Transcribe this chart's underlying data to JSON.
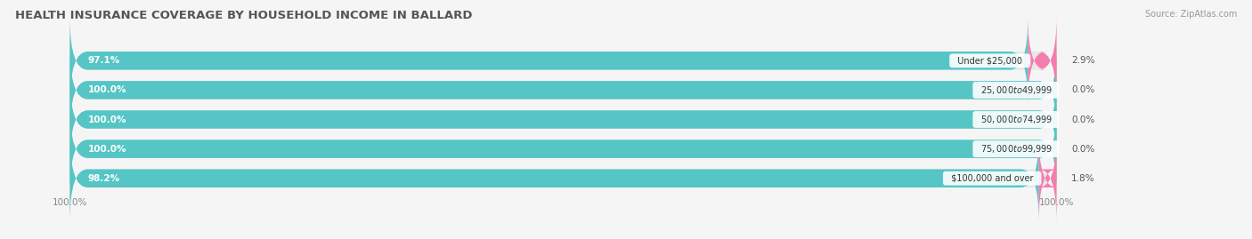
{
  "title": "HEALTH INSURANCE COVERAGE BY HOUSEHOLD INCOME IN BALLARD",
  "source": "Source: ZipAtlas.com",
  "categories": [
    "Under $25,000",
    "$25,000 to $49,999",
    "$50,000 to $74,999",
    "$75,000 to $99,999",
    "$100,000 and over"
  ],
  "with_coverage": [
    97.1,
    100.0,
    100.0,
    100.0,
    98.2
  ],
  "without_coverage": [
    2.9,
    0.0,
    0.0,
    0.0,
    1.8
  ],
  "with_coverage_color": "#55C5C5",
  "without_coverage_color": "#F47DAE",
  "bar_bg_color": "#e8e8e8",
  "bg_color": "#f5f5f5",
  "title_fontsize": 9.5,
  "label_fontsize": 7.5,
  "tick_fontsize": 7.5,
  "legend_fontsize": 8,
  "bar_height": 0.62,
  "bar_gap": 0.08,
  "xlim_left": -2,
  "xlim_right": 116,
  "x_left_label": "100.0%",
  "x_right_label": "100.0%",
  "rounding_size": 1.8
}
